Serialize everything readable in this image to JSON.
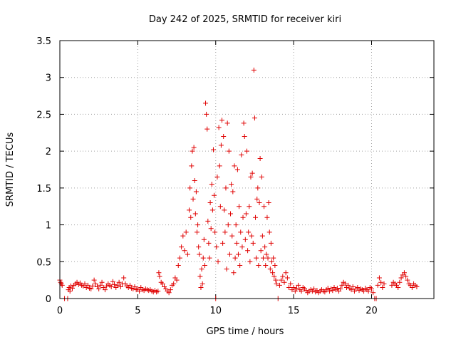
{
  "chart_data": {
    "type": "scatter",
    "title": "Day 242 of 2025, SRMTID for receiver kiri",
    "xlabel": "GPS time / hours",
    "ylabel": "SRMTID / TECUs",
    "xlim": [
      0,
      24
    ],
    "ylim": [
      0,
      3.5
    ],
    "x_ticks": [
      0,
      5,
      10,
      15,
      20
    ],
    "x_tick_labels": [
      "0",
      "5",
      "10",
      "15",
      "20"
    ],
    "y_ticks": [
      0,
      0.5,
      1,
      1.5,
      2,
      2.5,
      3,
      3.5
    ],
    "y_tick_labels": [
      "0",
      "0.5",
      "1",
      "1.5",
      "2",
      "2.5",
      "3",
      "3.5"
    ],
    "grid": true,
    "marker": "plus",
    "series_color": "#e00000",
    "series": [
      {
        "name": "SRMTID",
        "points": [
          [
            0.0,
            0.25
          ],
          [
            0.05,
            0.22
          ],
          [
            0.1,
            0.2
          ],
          [
            0.15,
            0.18
          ],
          [
            0.3,
            0.0
          ],
          [
            0.5,
            0.0
          ],
          [
            0.55,
            0.12
          ],
          [
            0.6,
            0.15
          ],
          [
            0.65,
            0.1
          ],
          [
            0.7,
            0.17
          ],
          [
            0.8,
            0.14
          ],
          [
            0.9,
            0.18
          ],
          [
            1.0,
            0.2
          ],
          [
            1.1,
            0.22
          ],
          [
            1.2,
            0.19
          ],
          [
            1.3,
            0.21
          ],
          [
            1.4,
            0.18
          ],
          [
            1.5,
            0.17
          ],
          [
            1.6,
            0.2
          ],
          [
            1.7,
            0.15
          ],
          [
            1.8,
            0.18
          ],
          [
            1.9,
            0.14
          ],
          [
            2.0,
            0.13
          ],
          [
            2.1,
            0.17
          ],
          [
            2.2,
            0.25
          ],
          [
            2.3,
            0.2
          ],
          [
            2.4,
            0.16
          ],
          [
            2.5,
            0.13
          ],
          [
            2.6,
            0.18
          ],
          [
            2.7,
            0.22
          ],
          [
            2.8,
            0.15
          ],
          [
            2.9,
            0.12
          ],
          [
            3.0,
            0.17
          ],
          [
            3.1,
            0.2
          ],
          [
            3.2,
            0.18
          ],
          [
            3.3,
            0.16
          ],
          [
            3.4,
            0.23
          ],
          [
            3.5,
            0.19
          ],
          [
            3.6,
            0.15
          ],
          [
            3.7,
            0.18
          ],
          [
            3.8,
            0.22
          ],
          [
            3.9,
            0.16
          ],
          [
            4.0,
            0.2
          ],
          [
            4.1,
            0.28
          ],
          [
            4.2,
            0.2
          ],
          [
            4.3,
            0.17
          ],
          [
            4.4,
            0.15
          ],
          [
            4.5,
            0.18
          ],
          [
            4.6,
            0.14
          ],
          [
            4.7,
            0.13
          ],
          [
            4.8,
            0.16
          ],
          [
            4.9,
            0.12
          ],
          [
            5.0,
            0.13
          ],
          [
            5.1,
            0.1
          ],
          [
            5.2,
            0.15
          ],
          [
            5.3,
            0.12
          ],
          [
            5.4,
            0.11
          ],
          [
            5.5,
            0.13
          ],
          [
            5.6,
            0.12
          ],
          [
            5.7,
            0.11
          ],
          [
            5.8,
            0.12
          ],
          [
            5.9,
            0.1
          ],
          [
            6.0,
            0.09
          ],
          [
            6.1,
            0.11
          ],
          [
            6.2,
            0.09
          ],
          [
            6.3,
            0.1
          ],
          [
            6.35,
            0.35
          ],
          [
            6.4,
            0.3
          ],
          [
            6.5,
            0.22
          ],
          [
            6.6,
            0.2
          ],
          [
            6.7,
            0.16
          ],
          [
            6.8,
            0.13
          ],
          [
            6.9,
            0.1
          ],
          [
            7.0,
            0.08
          ],
          [
            7.1,
            0.12
          ],
          [
            7.2,
            0.18
          ],
          [
            7.3,
            0.2
          ],
          [
            7.4,
            0.28
          ],
          [
            7.5,
            0.25
          ],
          [
            7.6,
            0.45
          ],
          [
            7.7,
            0.55
          ],
          [
            7.8,
            0.7
          ],
          [
            7.9,
            0.85
          ],
          [
            8.0,
            0.65
          ],
          [
            8.1,
            0.9
          ],
          [
            8.2,
            0.6
          ],
          [
            8.3,
            1.2
          ],
          [
            8.35,
            1.5
          ],
          [
            8.4,
            1.1
          ],
          [
            8.45,
            1.8
          ],
          [
            8.5,
            2.0
          ],
          [
            8.55,
            1.35
          ],
          [
            8.6,
            2.05
          ],
          [
            8.65,
            1.6
          ],
          [
            8.7,
            1.15
          ],
          [
            8.75,
            1.45
          ],
          [
            8.8,
            0.9
          ],
          [
            8.85,
            1.0
          ],
          [
            8.9,
            0.7
          ],
          [
            8.95,
            0.6
          ],
          [
            9.0,
            0.3
          ],
          [
            9.05,
            0.15
          ],
          [
            9.1,
            0.4
          ],
          [
            9.15,
            0.2
          ],
          [
            9.2,
            0.55
          ],
          [
            9.25,
            0.8
          ],
          [
            9.3,
            0.45
          ],
          [
            9.35,
            2.65
          ],
          [
            9.4,
            2.5
          ],
          [
            9.45,
            2.3
          ],
          [
            9.5,
            1.05
          ],
          [
            9.55,
            0.75
          ],
          [
            9.6,
            0.55
          ],
          [
            9.65,
            1.3
          ],
          [
            9.7,
            0.95
          ],
          [
            9.75,
            1.55
          ],
          [
            9.8,
            1.2
          ],
          [
            9.85,
            2.02
          ],
          [
            9.9,
            1.4
          ],
          [
            9.95,
            0.9
          ],
          [
            10.0,
            0.0
          ],
          [
            10.05,
            0.7
          ],
          [
            10.1,
            1.65
          ],
          [
            10.15,
            0.5
          ],
          [
            10.2,
            2.32
          ],
          [
            10.25,
            1.8
          ],
          [
            10.3,
            1.25
          ],
          [
            10.35,
            2.08
          ],
          [
            10.4,
            2.42
          ],
          [
            10.45,
            0.75
          ],
          [
            10.5,
            2.2
          ],
          [
            10.55,
            1.2
          ],
          [
            10.6,
            0.9
          ],
          [
            10.65,
            1.5
          ],
          [
            10.7,
            0.4
          ],
          [
            10.75,
            2.38
          ],
          [
            10.8,
            1.0
          ],
          [
            10.85,
            2.0
          ],
          [
            10.9,
            0.6
          ],
          [
            10.95,
            1.15
          ],
          [
            11.0,
            1.55
          ],
          [
            11.05,
            0.85
          ],
          [
            11.1,
            1.45
          ],
          [
            11.15,
            0.35
          ],
          [
            11.2,
            1.8
          ],
          [
            11.25,
            0.55
          ],
          [
            11.3,
            1.0
          ],
          [
            11.35,
            0.75
          ],
          [
            11.4,
            1.75
          ],
          [
            11.45,
            0.6
          ],
          [
            11.5,
            1.25
          ],
          [
            11.55,
            0.45
          ],
          [
            11.6,
            0.9
          ],
          [
            11.65,
            1.95
          ],
          [
            11.7,
            0.7
          ],
          [
            11.75,
            1.1
          ],
          [
            11.8,
            2.38
          ],
          [
            11.85,
            2.2
          ],
          [
            11.9,
            0.8
          ],
          [
            11.95,
            1.15
          ],
          [
            12.0,
            2.0
          ],
          [
            12.05,
            0.65
          ],
          [
            12.1,
            0.9
          ],
          [
            12.15,
            1.25
          ],
          [
            12.2,
            0.5
          ],
          [
            12.25,
            1.65
          ],
          [
            12.3,
            0.85
          ],
          [
            12.35,
            1.7
          ],
          [
            12.4,
            0.75
          ],
          [
            12.45,
            3.1
          ],
          [
            12.5,
            2.45
          ],
          [
            12.55,
            1.1
          ],
          [
            12.6,
            0.55
          ],
          [
            12.65,
            1.35
          ],
          [
            12.7,
            1.5
          ],
          [
            12.75,
            0.45
          ],
          [
            12.8,
            1.3
          ],
          [
            12.85,
            1.9
          ],
          [
            12.9,
            0.65
          ],
          [
            12.95,
            1.65
          ],
          [
            13.0,
            0.85
          ],
          [
            13.05,
            0.55
          ],
          [
            13.1,
            1.25
          ],
          [
            13.15,
            0.7
          ],
          [
            13.2,
            0.45
          ],
          [
            13.25,
            0.6
          ],
          [
            13.3,
            1.1
          ],
          [
            13.35,
            0.55
          ],
          [
            13.4,
            1.3
          ],
          [
            13.45,
            0.9
          ],
          [
            13.5,
            0.4
          ],
          [
            13.55,
            0.75
          ],
          [
            13.6,
            0.5
          ],
          [
            13.65,
            0.35
          ],
          [
            13.7,
            0.55
          ],
          [
            13.75,
            0.3
          ],
          [
            13.8,
            0.45
          ],
          [
            13.85,
            0.25
          ],
          [
            13.9,
            0.2
          ],
          [
            14.0,
            0.0
          ],
          [
            14.1,
            0.18
          ],
          [
            14.2,
            0.25
          ],
          [
            14.3,
            0.3
          ],
          [
            14.4,
            0.22
          ],
          [
            14.5,
            0.35
          ],
          [
            14.6,
            0.28
          ],
          [
            14.7,
            0.15
          ],
          [
            14.8,
            0.2
          ],
          [
            14.9,
            0.12
          ],
          [
            15.0,
            0.15
          ],
          [
            15.1,
            0.1
          ],
          [
            15.2,
            0.14
          ],
          [
            15.3,
            0.18
          ],
          [
            15.4,
            0.12
          ],
          [
            15.5,
            0.1
          ],
          [
            15.6,
            0.15
          ],
          [
            15.7,
            0.13
          ],
          [
            15.8,
            0.11
          ],
          [
            15.9,
            0.08
          ],
          [
            16.0,
            0.1
          ],
          [
            16.1,
            0.12
          ],
          [
            16.2,
            0.1
          ],
          [
            16.3,
            0.13
          ],
          [
            16.4,
            0.09
          ],
          [
            16.5,
            0.11
          ],
          [
            16.6,
            0.08
          ],
          [
            16.7,
            0.1
          ],
          [
            16.8,
            0.12
          ],
          [
            16.9,
            0.1
          ],
          [
            17.0,
            0.09
          ],
          [
            17.1,
            0.12
          ],
          [
            17.2,
            0.14
          ],
          [
            17.3,
            0.1
          ],
          [
            17.4,
            0.13
          ],
          [
            17.5,
            0.11
          ],
          [
            17.6,
            0.15
          ],
          [
            17.7,
            0.12
          ],
          [
            17.8,
            0.14
          ],
          [
            17.9,
            0.1
          ],
          [
            18.0,
            0.13
          ],
          [
            18.1,
            0.18
          ],
          [
            18.2,
            0.22
          ],
          [
            18.3,
            0.2
          ],
          [
            18.4,
            0.15
          ],
          [
            18.5,
            0.18
          ],
          [
            18.6,
            0.14
          ],
          [
            18.7,
            0.12
          ],
          [
            18.8,
            0.16
          ],
          [
            18.9,
            0.1
          ],
          [
            19.0,
            0.13
          ],
          [
            19.1,
            0.15
          ],
          [
            19.2,
            0.11
          ],
          [
            19.3,
            0.13
          ],
          [
            19.4,
            0.12
          ],
          [
            19.5,
            0.1
          ],
          [
            19.6,
            0.14
          ],
          [
            19.7,
            0.12
          ],
          [
            19.8,
            0.1
          ],
          [
            19.9,
            0.15
          ],
          [
            20.0,
            0.13
          ],
          [
            20.1,
            0.08
          ],
          [
            20.2,
            0.0
          ],
          [
            20.3,
            0.0
          ],
          [
            20.4,
            0.18
          ],
          [
            20.5,
            0.28
          ],
          [
            20.6,
            0.22
          ],
          [
            20.7,
            0.15
          ],
          [
            20.8,
            0.2
          ],
          [
            21.3,
            0.18
          ],
          [
            21.4,
            0.22
          ],
          [
            21.5,
            0.2
          ],
          [
            21.6,
            0.18
          ],
          [
            21.7,
            0.15
          ],
          [
            21.8,
            0.22
          ],
          [
            21.9,
            0.28
          ],
          [
            22.0,
            0.32
          ],
          [
            22.1,
            0.35
          ],
          [
            22.2,
            0.3
          ],
          [
            22.3,
            0.25
          ],
          [
            22.4,
            0.2
          ],
          [
            22.5,
            0.18
          ],
          [
            22.6,
            0.15
          ],
          [
            22.7,
            0.2
          ],
          [
            22.8,
            0.18
          ],
          [
            22.9,
            0.16
          ]
        ]
      }
    ]
  }
}
